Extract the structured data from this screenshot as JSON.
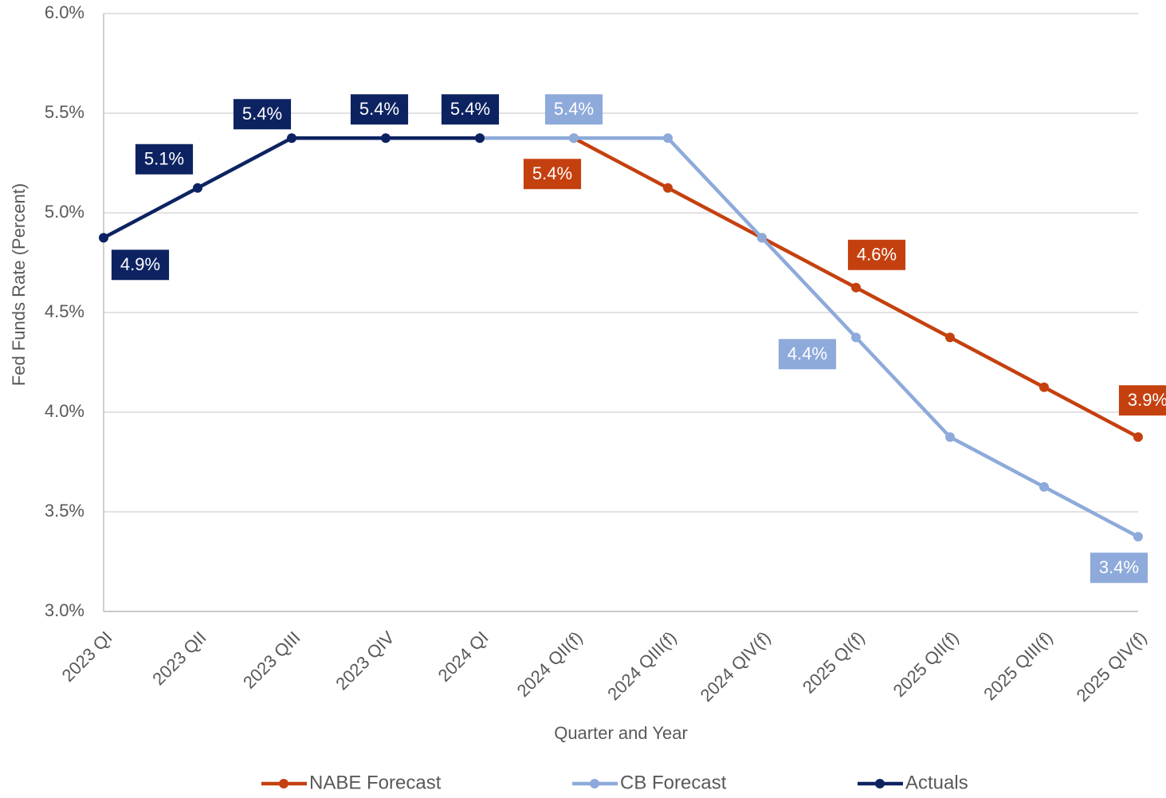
{
  "chart_data": {
    "type": "line",
    "xlabel": "Quarter and Year",
    "ylabel": "Fed Funds Rate (Percent)",
    "categories": [
      "2023 QI",
      "2023 QII",
      "2023 QIII",
      "2023 QIV",
      "2024 QI",
      "2024 QII(f)",
      "2024 QIII(f)",
      "2024 QIV(f)",
      "2025 QI(f)",
      "2025 QII(f)",
      "2025 QIII(f)",
      "2025 QIV(f)"
    ],
    "series": [
      {
        "name": "NABE Forecast",
        "color": "#c5400f",
        "values": [
          null,
          null,
          null,
          null,
          null,
          5.375,
          5.125,
          4.875,
          4.625,
          4.375,
          4.125,
          3.875
        ],
        "value_labels": [
          null,
          null,
          null,
          null,
          null,
          "5.4%",
          null,
          null,
          "4.6%",
          null,
          null,
          "3.9%"
        ]
      },
      {
        "name": "CB Forecast",
        "color": "#8eaadb",
        "values": [
          null,
          null,
          null,
          null,
          5.375,
          5.375,
          5.375,
          4.875,
          4.375,
          3.875,
          3.625,
          3.375
        ],
        "value_labels": [
          null,
          null,
          null,
          null,
          null,
          "5.4%",
          null,
          null,
          "4.4%",
          null,
          null,
          "3.4%"
        ]
      },
      {
        "name": "Actuals",
        "color": "#0d2361",
        "values": [
          4.875,
          5.125,
          5.375,
          5.375,
          5.375,
          null,
          null,
          null,
          null,
          null,
          null,
          null
        ],
        "value_labels": [
          "4.9%",
          "5.1%",
          "5.4%",
          "5.4%",
          "5.4%",
          null,
          null,
          null,
          null,
          null,
          null,
          null
        ]
      }
    ],
    "ylim": [
      3,
      6
    ],
    "yticks": [
      {
        "value": 3,
        "label": "3.0%"
      },
      {
        "value": 3.5,
        "label": "3.5%"
      },
      {
        "value": 4,
        "label": "4.0%"
      },
      {
        "value": 4.5,
        "label": "4.5%"
      },
      {
        "value": 5,
        "label": "5.0%"
      },
      {
        "value": 5.5,
        "label": "5.5%"
      },
      {
        "value": 6,
        "label": "6.0%"
      }
    ],
    "grid": true,
    "legend": "bottom"
  }
}
